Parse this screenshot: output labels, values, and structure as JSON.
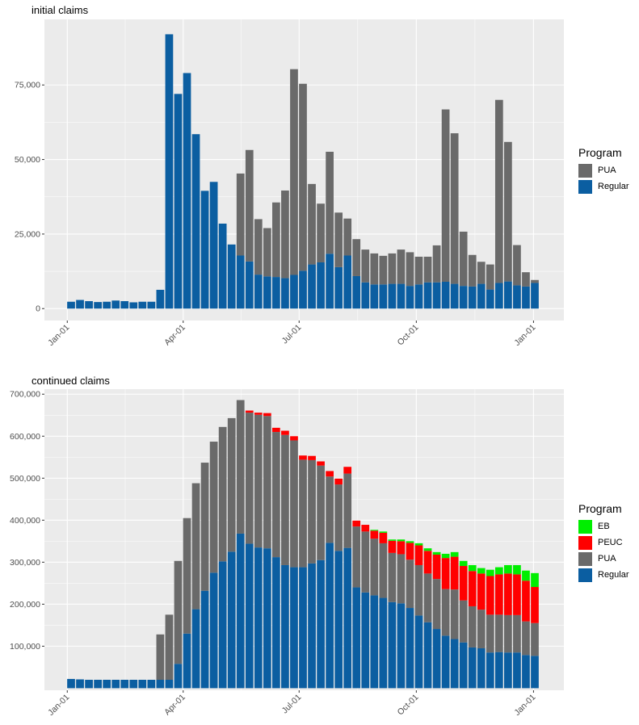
{
  "colors": {
    "Regular": "#0b5ea1",
    "PUA": "#6a6a6a",
    "PEUC": "#ff0000",
    "EB": "#00ee00",
    "panel": "#ebebeb",
    "grid": "#ffffff"
  },
  "chart_data": [
    {
      "type": "bar",
      "stacked": true,
      "title": "initial claims",
      "xlabel": "",
      "ylabel": "",
      "ylim": [
        -4000,
        97000
      ],
      "yticks": [
        0,
        25000,
        50000,
        75000
      ],
      "yticklabels": [
        "0",
        "25,000",
        "50,000",
        "75,000"
      ],
      "xticks": [
        "Jan-01",
        "Apr-01",
        "Jul-01",
        "Oct-01",
        "Jan-01"
      ],
      "x_start": "2020-01-04",
      "week_step_days": 7,
      "legend": {
        "title": "Program",
        "entries": [
          "PUA",
          "Regular"
        ],
        "position": "right"
      },
      "series": [
        {
          "name": "Regular",
          "values": [
            2300,
            2900,
            2500,
            2200,
            2300,
            2700,
            2500,
            2100,
            2300,
            2300,
            6300,
            92000,
            72000,
            79000,
            58500,
            39500,
            42500,
            28500,
            21500,
            17800,
            15800,
            11400,
            10800,
            10600,
            10200,
            11300,
            12700,
            14800,
            15500,
            18400,
            13900,
            17800,
            10900,
            8800,
            8100,
            8100,
            8300,
            8300,
            7600,
            8100,
            8800,
            8800,
            9000,
            8300,
            7600,
            7400,
            8300,
            6400,
            8600,
            9100,
            7800,
            7400,
            8600
          ],
          "display": [
            "0",
            "25,000",
            "50,000",
            "75,000"
          ]
        },
        {
          "name": "PUA",
          "values": [
            0,
            0,
            0,
            0,
            0,
            0,
            0,
            0,
            0,
            0,
            0,
            0,
            0,
            0,
            0,
            0,
            0,
            0,
            0,
            27500,
            37400,
            18600,
            16200,
            25000,
            29400,
            69000,
            62700,
            27000,
            19700,
            34200,
            18300,
            12400,
            12400,
            11000,
            10400,
            9600,
            10200,
            11500,
            11300,
            9300,
            8600,
            12400,
            57800,
            50500,
            18200,
            10600,
            7400,
            8400,
            61400,
            46800,
            13500,
            4800,
            1000
          ]
        }
      ]
    },
    {
      "type": "bar",
      "stacked": true,
      "title": "continued claims",
      "xlabel": "",
      "ylabel": "",
      "ylim": [
        -5000,
        712000
      ],
      "yticks": [
        100000,
        200000,
        300000,
        400000,
        500000,
        600000,
        700000
      ],
      "yticklabels": [
        "100,000",
        "200,000",
        "300,000",
        "400,000",
        "500,000",
        "600,000",
        "700,000"
      ],
      "xticks": [
        "Jan-01",
        "Apr-01",
        "Jul-01",
        "Oct-01",
        "Jan-01"
      ],
      "x_start": "2020-01-04",
      "week_step_days": 7,
      "legend": {
        "title": "Program",
        "entries": [
          "EB",
          "PEUC",
          "PUA",
          "Regular"
        ],
        "position": "right"
      },
      "series": [
        {
          "name": "Regular",
          "values": [
            22000,
            21000,
            20000,
            20000,
            20000,
            20000,
            20000,
            20000,
            20000,
            20000,
            20000,
            20000,
            58000,
            130000,
            188000,
            232000,
            275000,
            302000,
            325000,
            368000,
            344000,
            335000,
            333000,
            312000,
            293000,
            288000,
            288000,
            297000,
            305000,
            346000,
            327000,
            334000,
            240000,
            228000,
            221000,
            215000,
            205000,
            202000,
            191000,
            173000,
            157000,
            141000,
            125000,
            117000,
            109000,
            97000,
            95000,
            85000,
            86000,
            85000,
            85000,
            79000,
            77000
          ]
        },
        {
          "name": "PUA",
          "values": [
            0,
            0,
            0,
            0,
            0,
            0,
            0,
            0,
            0,
            0,
            108000,
            155000,
            245000,
            275000,
            300000,
            305000,
            312000,
            320000,
            318000,
            318000,
            312000,
            316000,
            315000,
            298000,
            310000,
            302000,
            256000,
            246000,
            225000,
            158000,
            158000,
            177000,
            145000,
            145000,
            135000,
            130000,
            117000,
            117000,
            115000,
            120000,
            116000,
            119000,
            111000,
            118000,
            100000,
            98000,
            92000,
            90000,
            89000,
            89000,
            89000,
            80000,
            78000
          ]
        },
        {
          "name": "PEUC",
          "values": [
            0,
            0,
            0,
            0,
            0,
            0,
            0,
            0,
            0,
            0,
            0,
            0,
            0,
            0,
            0,
            0,
            0,
            0,
            0,
            0,
            5000,
            5000,
            7000,
            10000,
            10000,
            10000,
            10000,
            10000,
            10000,
            13000,
            14000,
            16000,
            14000,
            16000,
            19000,
            25000,
            29000,
            31000,
            40000,
            47000,
            54000,
            58000,
            74000,
            78000,
            82000,
            84000,
            86000,
            92000,
            96000,
            99000,
            97000,
            97000,
            86000
          ]
        },
        {
          "name": "EB",
          "values": [
            0,
            0,
            0,
            0,
            0,
            0,
            0,
            0,
            0,
            0,
            0,
            0,
            0,
            0,
            0,
            0,
            0,
            0,
            0,
            0,
            0,
            0,
            0,
            0,
            0,
            0,
            0,
            0,
            0,
            0,
            0,
            0,
            0,
            0,
            2000,
            3000,
            3000,
            4000,
            4000,
            5000,
            6000,
            6000,
            10000,
            11000,
            12000,
            14000,
            13000,
            15000,
            17000,
            20000,
            22000,
            24000,
            33000
          ]
        }
      ]
    }
  ]
}
